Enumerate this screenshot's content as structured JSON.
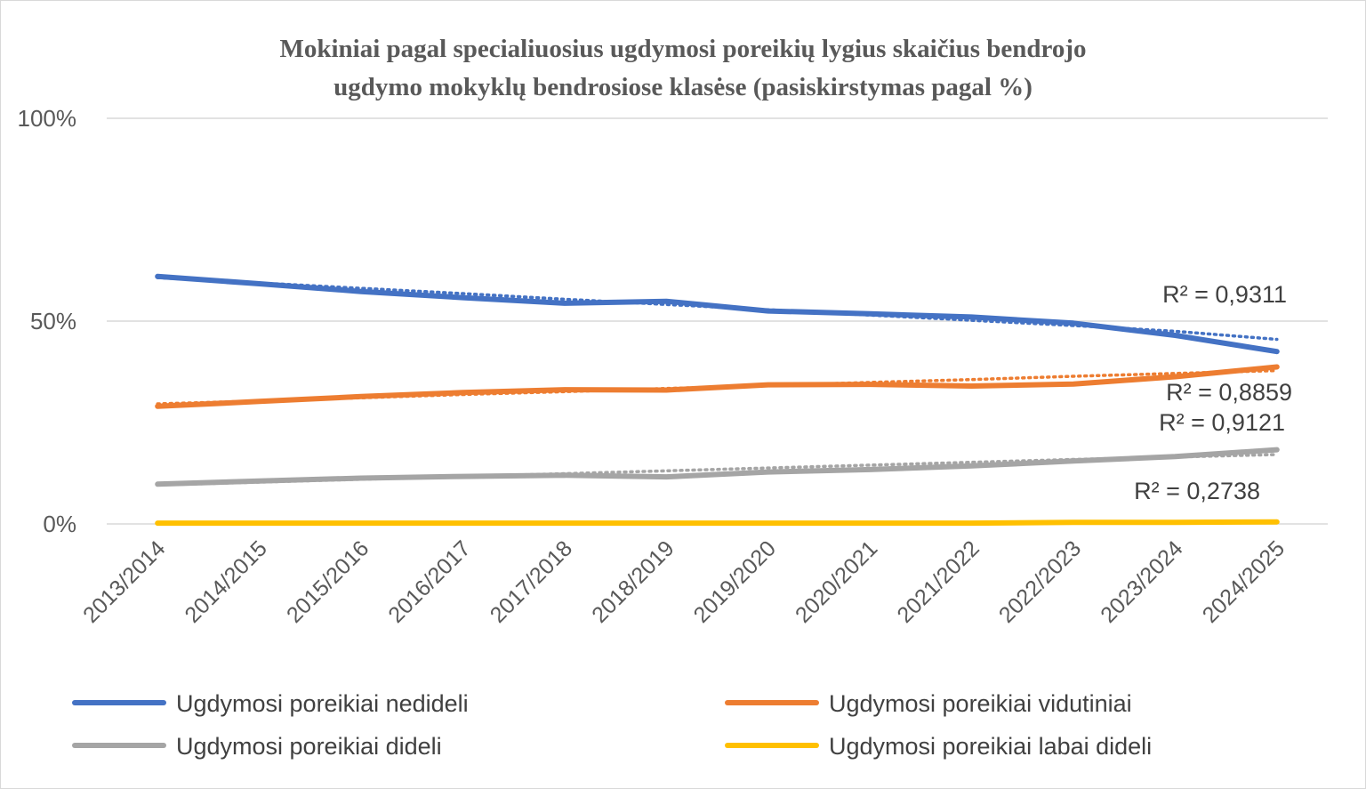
{
  "chart_data": {
    "type": "line",
    "title_lines": [
      "Mokiniai pagal specialiuosius ugdymosi poreikių lygius skaičius bendrojo",
      "ugdymo mokyklų bendrosiose klasėse (pasiskirstymas pagal %)"
    ],
    "categories": [
      "2013/2014",
      "2014/2015",
      "2015/2016",
      "2016/2017",
      "2017/2018",
      "2018/2019",
      "2019/2020",
      "2020/2021",
      "2021/2022",
      "2022/2023",
      "2023/2024",
      "2024/2025"
    ],
    "ylim": [
      0,
      100
    ],
    "yticks": [
      0,
      50,
      100
    ],
    "ytick_labels": [
      "0%",
      "50%",
      "100%"
    ],
    "grid": true,
    "legend_position": "bottom",
    "series": [
      {
        "name": "Ugdymosi poreikiai nedideli",
        "color": "#4472C4",
        "values": [
          61.0,
          59.2,
          57.3,
          55.8,
          54.4,
          54.9,
          52.5,
          51.8,
          51.0,
          49.5,
          46.5,
          42.5
        ],
        "trend": [
          60.7,
          59.4,
          58.1,
          56.8,
          55.4,
          54.1,
          52.8,
          51.5,
          50.2,
          48.9,
          47.5,
          45.5
        ],
        "r2": "R² = 0,9311"
      },
      {
        "name": "Ugdymosi poreikiai vidutiniai",
        "color": "#ED7D31",
        "values": [
          29.0,
          30.2,
          31.4,
          32.4,
          33.1,
          33.0,
          34.3,
          34.4,
          34.0,
          34.5,
          36.3,
          38.7
        ],
        "trend": [
          29.6,
          30.3,
          31.1,
          31.9,
          32.6,
          33.4,
          34.1,
          34.9,
          35.6,
          36.4,
          37.1,
          37.8
        ],
        "r2": "R² = 0,8859"
      },
      {
        "name": "Ugdymosi poreikiai dideli",
        "color": "#A5A5A5",
        "values": [
          9.8,
          10.6,
          11.3,
          11.7,
          12.0,
          11.6,
          12.8,
          13.4,
          14.3,
          15.5,
          16.6,
          18.3
        ],
        "trend": [
          9.6,
          10.3,
          11.0,
          11.7,
          12.4,
          13.1,
          13.8,
          14.5,
          15.2,
          15.9,
          16.5,
          17.1
        ],
        "r2": "R² = 0,9121"
      },
      {
        "name": "Ugdymosi poreikiai labai dideli",
        "color": "#FFC000",
        "values": [
          0.2,
          0.2,
          0.2,
          0.2,
          0.2,
          0.2,
          0.2,
          0.2,
          0.2,
          0.4,
          0.4,
          0.5
        ],
        "trend": [
          0.15,
          0.18,
          0.21,
          0.24,
          0.27,
          0.3,
          0.33,
          0.36,
          0.39,
          0.42,
          0.45,
          0.48
        ],
        "r2": "R² = 0,2738"
      }
    ]
  }
}
